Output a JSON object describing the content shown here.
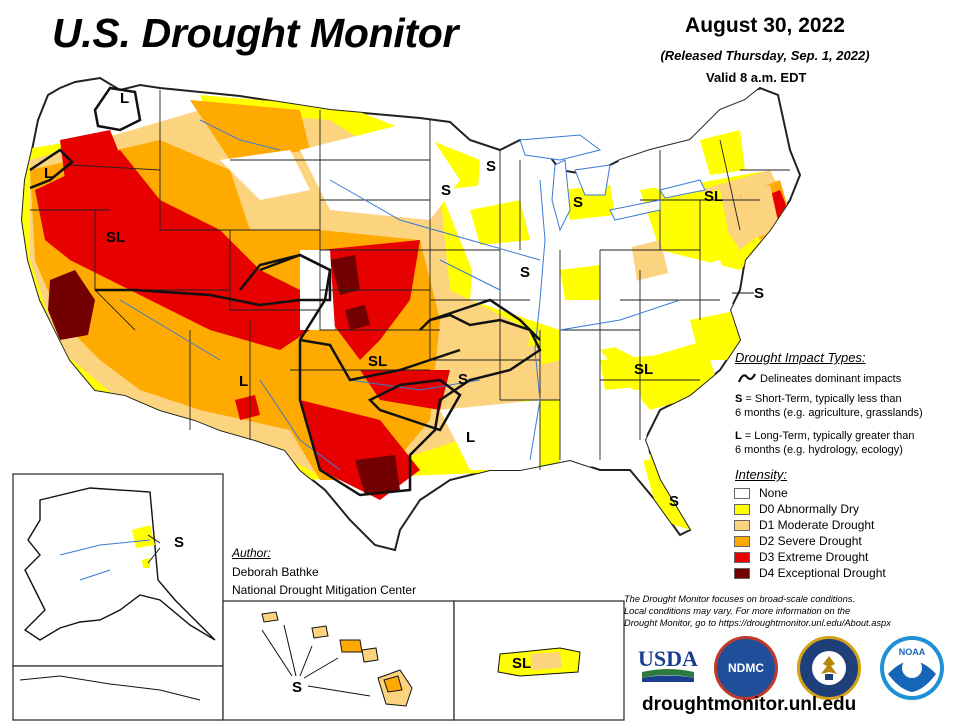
{
  "header": {
    "title": "U.S. Drought Monitor",
    "date": "August 30, 2022",
    "released": "(Released Thursday, Sep. 1, 2022)",
    "valid": "Valid 8 a.m. EDT"
  },
  "map_labels": {
    "l_northwest": "L",
    "l_pacific": "L",
    "sl_west": "SL",
    "l_southwest": "L",
    "sl_plains": "SL",
    "s_ozarks": "S",
    "l_louisiana": "L",
    "s_michigan_north": "S",
    "s_wisconsin": "S",
    "s_michigan": "S",
    "s_illinois": "S",
    "sl_northeast": "SL",
    "s_midatlantic": "S",
    "sl_carolinas": "SL",
    "s_florida": "S",
    "s_alaska": "S",
    "s_hawaii": "S",
    "sl_puerto_rico": "SL"
  },
  "legend": {
    "impact_title": "Drought Impact Types:",
    "delineates": "Delineates dominant impacts",
    "short_term_key": "S",
    "short_term_line1": " = Short-Term, typically less than",
    "short_term_line2": "6 months (e.g. agriculture, grasslands)",
    "long_term_key": "L",
    "long_term_line1": " = Long-Term, typically greater than",
    "long_term_line2": "6 months (e.g. hydrology, ecology)",
    "intensity_title": "Intensity:",
    "levels": [
      {
        "label": "None",
        "color": "#ffffff"
      },
      {
        "label": "D0 Abnormally Dry",
        "color": "#ffff00"
      },
      {
        "label": "D1 Moderate Drought",
        "color": "#fcd37f"
      },
      {
        "label": "D2 Severe Drought",
        "color": "#ffaa00"
      },
      {
        "label": "D3 Extreme Drought",
        "color": "#e60000"
      },
      {
        "label": "D4 Exceptional Drought",
        "color": "#730000"
      }
    ]
  },
  "author": {
    "title": "Author:",
    "name": "Deborah Bathke",
    "org": "National Drought Mitigation Center"
  },
  "note": {
    "line1": "The Drought Monitor focuses on broad-scale conditions.",
    "line2": "Local conditions may vary. For more information on the",
    "line3": "Drought Monitor, go to https://droughtmonitor.unl.edu/About.aspx"
  },
  "logos": {
    "usda": "USDA",
    "ndmc": "NDMC",
    "noaa": "NOAA"
  },
  "footer": {
    "url": "droughtmonitor.unl.edu"
  }
}
